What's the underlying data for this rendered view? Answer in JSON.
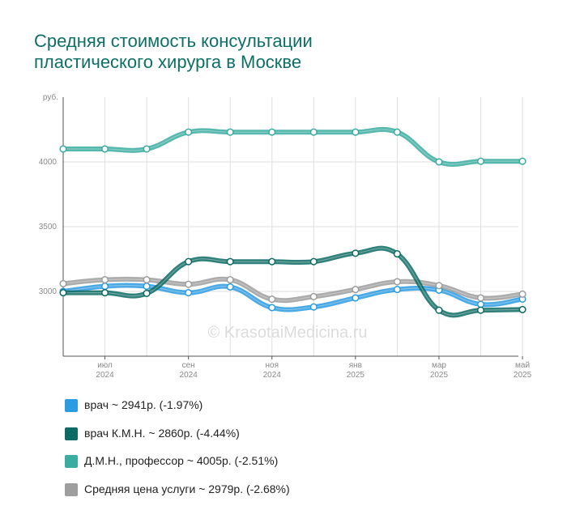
{
  "title_lines": [
    "Средняя стоимость консультации",
    "пластического хирурга в Москве"
  ],
  "watermark": "© KrasotaiMedicina.ru",
  "chart_data": {
    "type": "line",
    "x": [
      "2024-06",
      "2024-07",
      "2024-08",
      "2024-09",
      "2024-10",
      "2024-11",
      "2024-12",
      "2025-01",
      "2025-02",
      "2025-03",
      "2025-04",
      "2025-05"
    ],
    "x_tick_labels": [
      {
        "month": "июл",
        "year": "2024",
        "index": 1
      },
      {
        "month": "сен",
        "year": "2024",
        "index": 3
      },
      {
        "month": "ноя",
        "year": "2024",
        "index": 5
      },
      {
        "month": "янв",
        "year": "2025",
        "index": 7
      },
      {
        "month": "мар",
        "year": "2025",
        "index": 9
      },
      {
        "month": "май",
        "year": "2025",
        "index": 11
      }
    ],
    "ylabel": "руб.",
    "y_ticks": [
      3000,
      3500,
      4000
    ],
    "ylim": [
      2500,
      4500
    ],
    "grid": true,
    "series": [
      {
        "name": "врач",
        "color": "#2b9be2",
        "values": [
          3000,
          3040,
          3040,
          2990,
          3035,
          2875,
          2880,
          2950,
          3015,
          3010,
          2900,
          2941
        ]
      },
      {
        "name": "Д.М.Н., профессор",
        "color": "#3aaca0",
        "values": [
          4100,
          4100,
          4100,
          4230,
          4230,
          4230,
          4230,
          4230,
          4230,
          4000,
          4005,
          4005
        ]
      },
      {
        "name": "Средняя цена услуги",
        "color": "#9e9e9e",
        "values": [
          3060,
          3090,
          3090,
          3055,
          3090,
          2940,
          2960,
          3015,
          3075,
          3045,
          2950,
          2979
        ]
      },
      {
        "name": "врач К.М.Н.",
        "color": "#0d6b63",
        "values": [
          2990,
          2990,
          2985,
          3230,
          3230,
          3230,
          3230,
          3295,
          3290,
          2855,
          2855,
          2860
        ]
      }
    ]
  },
  "legend": [
    {
      "label": "врач ~ 2941р. (-1.97%)",
      "color": "#2b9be2"
    },
    {
      "label": "врач К.М.Н. ~ 2860р. (-4.44%)",
      "color": "#0d6b63"
    },
    {
      "label": "Д.М.Н., профессор ~ 4005р. (-2.51%)",
      "color": "#3aaca0"
    },
    {
      "label": "Средняя цена услуги ~ 2979р. (-2.68%)",
      "color": "#9e9e9e"
    }
  ]
}
